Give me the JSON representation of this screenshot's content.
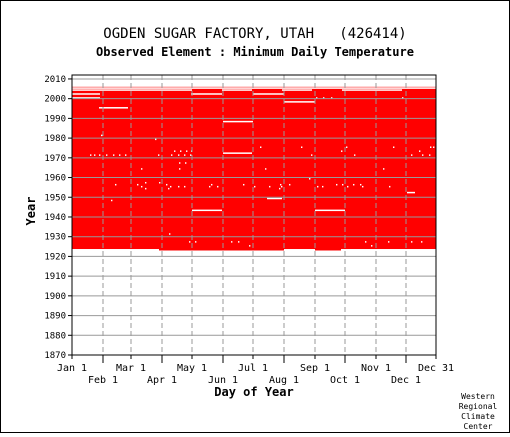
{
  "chart_data": {
    "type": "heatmap",
    "title": "OGDEN SUGAR FACTORY, UTAH   (426414)",
    "subtitle": "Observed Element : Minimum Daily Temperature",
    "xlabel": "Day of Year",
    "ylabel": "Year",
    "credit": [
      "Western",
      "Regional",
      "Climate",
      "Center"
    ],
    "xlim": [
      1,
      365
    ],
    "ylim": [
      1870,
      2012
    ],
    "yticks": [
      1870,
      1880,
      1890,
      1900,
      1910,
      1920,
      1930,
      1940,
      1950,
      1960,
      1970,
      1980,
      1990,
      2000,
      2010
    ],
    "xticks_top_row": [
      {
        "label": "Jan 1",
        "day": 1
      },
      {
        "label": "Mar 1",
        "day": 60
      },
      {
        "label": "May 1",
        "day": 121
      },
      {
        "label": "Jul 1",
        "day": 182
      },
      {
        "label": "Sep 1",
        "day": 244
      },
      {
        "label": "Nov 1",
        "day": 305
      },
      {
        "label": "Dec 31",
        "day": 365
      }
    ],
    "xticks_bottom_row": [
      {
        "label": "Feb 1",
        "day": 32
      },
      {
        "label": "Apr 1",
        "day": 91
      },
      {
        "label": "Jun 1",
        "day": 152
      },
      {
        "label": "Aug 1",
        "day": 213
      },
      {
        "label": "Oct 1",
        "day": 274
      },
      {
        "label": "Dec 1",
        "day": 335
      }
    ],
    "record_years": [
      1923,
      2005
    ],
    "record_color": "#ff0000",
    "missing_intervals": [
      {
        "year": 2005,
        "day_start": 1,
        "day_end": 365
      },
      {
        "year": 2004,
        "day_start": 1,
        "day_end": 120
      },
      {
        "year": 2004,
        "day_start": 151,
        "day_end": 180
      },
      {
        "year": 2004,
        "day_start": 211,
        "day_end": 240
      },
      {
        "year": 2004,
        "day_start": 271,
        "day_end": 330
      },
      {
        "year": 2002,
        "day_start": 1,
        "day_end": 28
      },
      {
        "year": 2002,
        "day_start": 120,
        "day_end": 150
      },
      {
        "year": 2002,
        "day_start": 182,
        "day_end": 212
      },
      {
        "year": 2000,
        "day_start": 1,
        "day_end": 28
      },
      {
        "year": 1998,
        "day_start": 213,
        "day_end": 243
      },
      {
        "year": 1995,
        "day_start": 28,
        "day_end": 56
      },
      {
        "year": 1988,
        "day_start": 152,
        "day_end": 181
      },
      {
        "year": 1972,
        "day_start": 152,
        "day_end": 180
      },
      {
        "year": 1949,
        "day_start": 196,
        "day_end": 210
      },
      {
        "year": 1943,
        "day_start": 121,
        "day_end": 150
      },
      {
        "year": 1943,
        "day_start": 244,
        "day_end": 273
      },
      {
        "year": 1952,
        "day_start": 336,
        "day_end": 343
      },
      {
        "year": 1923,
        "day_start": 1,
        "day_end": 87
      },
      {
        "year": 1923,
        "day_start": 213,
        "day_end": 243
      },
      {
        "year": 1923,
        "day_start": 270,
        "day_end": 365
      }
    ],
    "missing_days": [
      {
        "year": 2000,
        "days": [
          245,
          252,
          260,
          331
        ]
      },
      {
        "year": 1981,
        "days": [
          30
        ]
      },
      {
        "year": 1979,
        "days": [
          84
        ]
      },
      {
        "year": 1975,
        "days": [
          189,
          230,
          275,
          322,
          359,
          362
        ]
      },
      {
        "year": 1973,
        "days": [
          103,
          109,
          115,
          120,
          270,
          348
        ]
      },
      {
        "year": 1971,
        "days": [
          19,
          23,
          28,
          35,
          42,
          48,
          54,
          87,
          100,
          107,
          113,
          119,
          240,
          283,
          340,
          351,
          358
        ]
      },
      {
        "year": 1967,
        "days": [
          108,
          114
        ]
      },
      {
        "year": 1964,
        "days": [
          70,
          108,
          194,
          312
        ]
      },
      {
        "year": 1959,
        "days": [
          238
        ]
      },
      {
        "year": 1957,
        "days": [
          74,
          88
        ]
      },
      {
        "year": 1956,
        "days": [
          44,
          66,
          95,
          140,
          172,
          209,
          218,
          265,
          271,
          282,
          289
        ]
      },
      {
        "year": 1955,
        "days": [
          70,
          99,
          107,
          113,
          138,
          146,
          183,
          198,
          210,
          246,
          251,
          276,
          291,
          318
        ]
      },
      {
        "year": 1954,
        "days": [
          74,
          97,
          208
        ]
      },
      {
        "year": 1948,
        "days": [
          40
        ]
      },
      {
        "year": 1931,
        "days": [
          98
        ]
      },
      {
        "year": 1927,
        "days": [
          118,
          124,
          160,
          167,
          294,
          317,
          340,
          350
        ]
      },
      {
        "year": 1925,
        "days": [
          178,
          300
        ]
      }
    ]
  }
}
